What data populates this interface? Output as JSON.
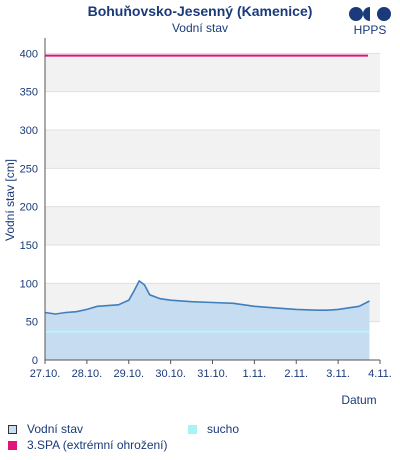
{
  "header": {
    "title": "Bohuňovsko-Jesenný (Kamenice)",
    "subtitle": "Vodní stav",
    "logo_text": "HPPS"
  },
  "legend": {
    "items": [
      {
        "label": "Vodní stav",
        "color": "#c8ddf0",
        "border": "#333333"
      },
      {
        "label": "sucho",
        "color": "#a8f4f4"
      },
      {
        "label": "3.SPA (extrémní ohrožení)",
        "color": "#e0147a"
      }
    ]
  },
  "colors": {
    "line": "#3f7fbf",
    "area": "#c6dcf0",
    "sucho": "#b8f5f5",
    "spa3": "#e0147a",
    "band": "#f2f2f2",
    "axis_text": "#1a3a7a"
  },
  "chart_data": {
    "type": "area",
    "title": "Bohuňovsko-Jesenný (Kamenice)",
    "subtitle": "Vodní stav",
    "xlabel": "Datum",
    "ylabel": "Vodní stav [cm]",
    "ylim": [
      0,
      420
    ],
    "yticks": [
      0,
      50,
      100,
      150,
      200,
      250,
      300,
      350,
      400
    ],
    "xlim": [
      "2023-10-27",
      "2023-11-04"
    ],
    "xticks": [
      "27.10.",
      "28.10.",
      "29.10.",
      "30.10.",
      "31.10.",
      "1.11.",
      "2.11.",
      "3.11.",
      "4.11."
    ],
    "series": [
      {
        "name": "Vodní stav",
        "x": [
          "2023-10-27T00:00",
          "2023-10-27T06:00",
          "2023-10-27T12:00",
          "2023-10-27T18:00",
          "2023-10-28T00:00",
          "2023-10-28T06:00",
          "2023-10-28T12:00",
          "2023-10-28T18:00",
          "2023-10-29T00:00",
          "2023-10-29T03:00",
          "2023-10-29T06:00",
          "2023-10-29T09:00",
          "2023-10-29T12:00",
          "2023-10-29T18:00",
          "2023-10-30T00:00",
          "2023-10-30T12:00",
          "2023-10-31T00:00",
          "2023-10-31T12:00",
          "2023-11-01T00:00",
          "2023-11-01T12:00",
          "2023-11-02T00:00",
          "2023-11-02T12:00",
          "2023-11-02T18:00",
          "2023-11-03T00:00",
          "2023-11-03T12:00",
          "2023-11-03T18:00"
        ],
        "values": [
          62,
          60,
          62,
          63,
          66,
          70,
          71,
          72,
          78,
          90,
          103,
          98,
          85,
          80,
          78,
          76,
          75,
          74,
          70,
          68,
          66,
          65,
          65,
          66,
          70,
          77
        ]
      },
      {
        "name": "sucho",
        "constant": 37
      },
      {
        "name": "3.SPA (extrémní ohrožení)",
        "constant": 397
      }
    ],
    "grid": "alternating bands"
  }
}
